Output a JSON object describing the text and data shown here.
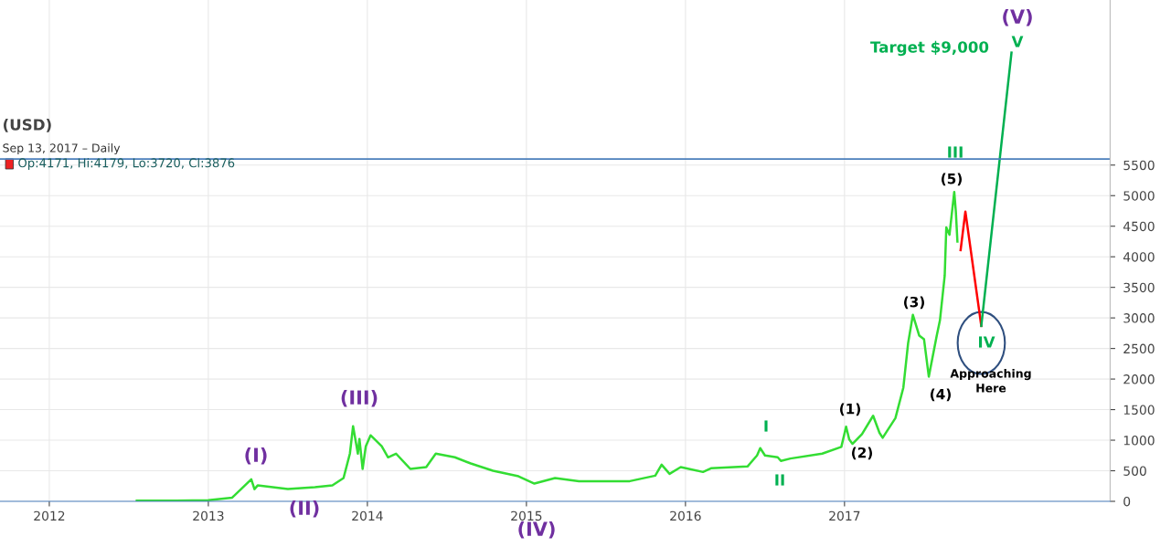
{
  "chart_data": {
    "type": "line",
    "title": "(USD)",
    "subtitle": "Sep 13, 2017 – Daily",
    "xlim": [
      2011.69,
      2018.67
    ],
    "xticks": [
      2012,
      2013,
      2014,
      2015,
      2016,
      2017
    ],
    "ylim": [
      0,
      8200
    ],
    "yticks": [
      0,
      500,
      1000,
      1500,
      2000,
      2500,
      3000,
      3500,
      4000,
      4500,
      5000,
      5500
    ],
    "grid": true,
    "marker": "none",
    "line_style": "solid",
    "ref_lines": [
      {
        "axis": "y",
        "value": 5600,
        "label": null,
        "color": "#4a7ebb"
      }
    ],
    "series": [
      {
        "color": "#33dd33",
        "x": [
          2012.55,
          2012.8,
          2013.0,
          2013.15,
          2013.27,
          2013.29,
          2013.31,
          2013.5,
          2013.67,
          2013.78,
          2013.85,
          2013.89,
          2013.91,
          2013.94,
          2013.95,
          2013.97,
          2013.99,
          2014.02,
          2014.09,
          2014.13,
          2014.18,
          2014.27,
          2014.37,
          2014.43,
          2014.55,
          2014.65,
          2014.79,
          2014.95,
          2015.05,
          2015.18,
          2015.33,
          2015.65,
          2015.81,
          2015.85,
          2015.9,
          2015.97,
          2016.11,
          2016.16,
          2016.39,
          2016.45,
          2016.47,
          2016.5,
          2016.58,
          2016.6,
          2016.66,
          2016.86,
          2016.98,
          2017.01,
          2017.03,
          2017.05,
          2017.11,
          2017.18,
          2017.22,
          2017.24,
          2017.32,
          2017.37,
          2017.4,
          2017.43,
          2017.47,
          2017.5,
          2017.53,
          2017.58,
          2017.6,
          2017.63,
          2017.64,
          2017.66,
          2017.69,
          2017.7,
          2017.71
        ],
        "values": [
          10,
          10,
          20,
          60,
          360,
          200,
          260,
          200,
          230,
          260,
          380,
          780,
          1230,
          780,
          1020,
          530,
          900,
          1080,
          900,
          720,
          780,
          530,
          560,
          780,
          720,
          620,
          500,
          410,
          290,
          380,
          330,
          330,
          420,
          600,
          450,
          560,
          480,
          540,
          570,
          750,
          870,
          750,
          720,
          660,
          700,
          780,
          890,
          1220,
          1010,
          940,
          1100,
          1400,
          1120,
          1040,
          1360,
          1860,
          2590,
          3050,
          2710,
          2650,
          2040,
          2710,
          2960,
          3690,
          4480,
          4360,
          5060,
          4740,
          4250
        ]
      },
      {
        "color": "#ff0000",
        "x": [
          2017.73,
          2017.76,
          2017.86
        ],
        "values": [
          4110,
          4740,
          2870
        ]
      },
      {
        "color": "#00b050",
        "x": [
          2017.86,
          2018.05
        ],
        "values": [
          2870,
          7340
        ]
      }
    ],
    "annotations": [
      "Op:4171, Hi:4179, Lo:3720, Cl:3876",
      "(I)",
      "(II)",
      "(III)",
      "(IV)",
      "(V)",
      "I",
      "II",
      "III",
      "IV",
      "V",
      "(1)",
      "(2)",
      "(3)",
      "(4)",
      "(5)",
      "Target $9,000",
      "Approaching\nHere"
    ]
  }
}
